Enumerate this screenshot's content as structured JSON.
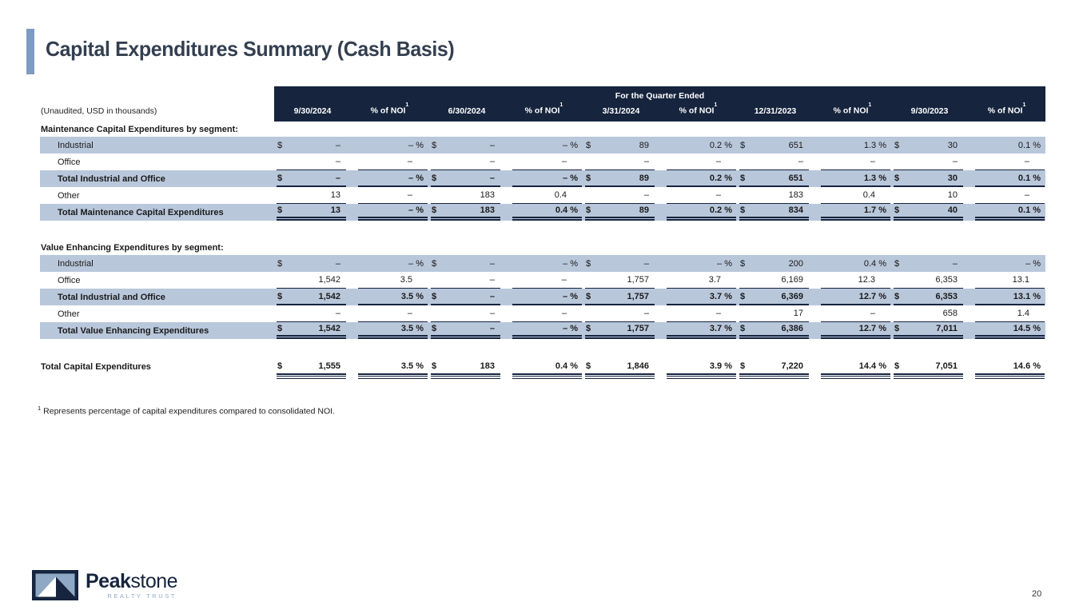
{
  "slide": {
    "title": "Capital Expenditures Summary (Cash Basis)",
    "page_number": "20",
    "footnote_marker": "1",
    "footnote_text": "Represents percentage of capital expenditures compared to consolidated NOI."
  },
  "logo": {
    "brand_bold": "Peak",
    "brand_light": "stone",
    "tagline": "REALTY TRUST"
  },
  "colors": {
    "navy": "#16243E",
    "stripe": "#B9C7DB",
    "accent": "#7E9CC2",
    "title": "#333F50",
    "steel": "#8FA9C4"
  },
  "table": {
    "spanner": "For the Quarter Ended",
    "unaudited_label": "(Unaudited, USD in thousands)",
    "currency": "$",
    "pct_label": "% of NOI",
    "pct_sup": "1",
    "quarters": [
      "9/30/2024",
      "6/30/2024",
      "3/31/2024",
      "12/31/2023",
      "9/30/2023"
    ],
    "sections": [
      {
        "heading": "Maintenance Capital Expenditures by segment:",
        "rows": [
          {
            "label": "Industrial",
            "stripe": true,
            "bold": false,
            "dollar": true,
            "pct_sign": true,
            "indent": true,
            "ul": "none",
            "cells": [
              [
                "–",
                "– %"
              ],
              [
                "–",
                "– %"
              ],
              [
                "89",
                "0.2 %"
              ],
              [
                "651",
                "1.3 %"
              ],
              [
                "30",
                "0.1 %"
              ]
            ]
          },
          {
            "label": "Office",
            "stripe": false,
            "bold": false,
            "dollar": false,
            "pct_sign": false,
            "indent": true,
            "ul": "single",
            "cells": [
              [
                "–",
                "–"
              ],
              [
                "–",
                "–"
              ],
              [
                "–",
                "–"
              ],
              [
                "–",
                "–"
              ],
              [
                "–",
                "–"
              ]
            ]
          },
          {
            "label": "Total Industrial and Office",
            "stripe": true,
            "bold": true,
            "dollar": true,
            "pct_sign": true,
            "indent": true,
            "ul": "strong",
            "cells": [
              [
                "–",
                "– %"
              ],
              [
                "–",
                "– %"
              ],
              [
                "89",
                "0.2 %"
              ],
              [
                "651",
                "1.3 %"
              ],
              [
                "30",
                "0.1 %"
              ]
            ]
          },
          {
            "label": "Other",
            "stripe": false,
            "bold": false,
            "dollar": false,
            "pct_sign": false,
            "indent": true,
            "ul": "single",
            "cells": [
              [
                "13",
                "–"
              ],
              [
                "183",
                "0.4"
              ],
              [
                "–",
                "–"
              ],
              [
                "183",
                "0.4"
              ],
              [
                "10",
                "–"
              ]
            ]
          },
          {
            "label": "Total Maintenance Capital Expenditures",
            "stripe": true,
            "bold": true,
            "dollar": true,
            "pct_sign": true,
            "indent": true,
            "ul": "double",
            "cells": [
              [
                "13",
                "– %"
              ],
              [
                "183",
                "0.4 %"
              ],
              [
                "89",
                "0.2 %"
              ],
              [
                "834",
                "1.7 %"
              ],
              [
                "40",
                "0.1 %"
              ]
            ]
          }
        ]
      },
      {
        "heading": "Value Enhancing Expenditures by segment:",
        "rows": [
          {
            "label": "Industrial",
            "stripe": true,
            "bold": false,
            "dollar": true,
            "pct_sign": true,
            "indent": true,
            "ul": "none",
            "cells": [
              [
                "–",
                "– %"
              ],
              [
                "–",
                "– %"
              ],
              [
                "–",
                "– %"
              ],
              [
                "200",
                "0.4 %"
              ],
              [
                "–",
                "– %"
              ]
            ]
          },
          {
            "label": "Office",
            "stripe": false,
            "bold": false,
            "dollar": false,
            "pct_sign": false,
            "indent": true,
            "ul": "single",
            "cells": [
              [
                "1,542",
                "3.5"
              ],
              [
                "–",
                "–"
              ],
              [
                "1,757",
                "3.7"
              ],
              [
                "6,169",
                "12.3"
              ],
              [
                "6,353",
                "13.1"
              ]
            ]
          },
          {
            "label": "Total Industrial and Office",
            "stripe": true,
            "bold": true,
            "dollar": true,
            "pct_sign": true,
            "indent": true,
            "ul": "strong",
            "cells": [
              [
                "1,542",
                "3.5 %"
              ],
              [
                "–",
                "– %"
              ],
              [
                "1,757",
                "3.7 %"
              ],
              [
                "6,369",
                "12.7 %"
              ],
              [
                "6,353",
                "13.1 %"
              ]
            ]
          },
          {
            "label": "Other",
            "stripe": false,
            "bold": false,
            "dollar": false,
            "pct_sign": false,
            "indent": true,
            "ul": "single",
            "cells": [
              [
                "–",
                "–"
              ],
              [
                "–",
                "–"
              ],
              [
                "–",
                "–"
              ],
              [
                "17",
                "–"
              ],
              [
                "658",
                "1.4"
              ]
            ]
          },
          {
            "label": "Total Value Enhancing Expenditures",
            "stripe": true,
            "bold": true,
            "dollar": true,
            "pct_sign": true,
            "indent": true,
            "ul": "double",
            "cells": [
              [
                "1,542",
                "3.5 %"
              ],
              [
                "–",
                "– %"
              ],
              [
                "1,757",
                "3.7 %"
              ],
              [
                "6,386",
                "12.7 %"
              ],
              [
                "7,011",
                "14.5 %"
              ]
            ]
          }
        ]
      }
    ],
    "grand_total": {
      "label": "Total Capital Expenditures",
      "stripe": false,
      "bold": true,
      "dollar": true,
      "pct_sign": true,
      "indent": false,
      "ul": "grand",
      "cells": [
        [
          "1,555",
          "3.5 %"
        ],
        [
          "183",
          "0.4 %"
        ],
        [
          "1,846",
          "3.9 %"
        ],
        [
          "7,220",
          "14.4 %"
        ],
        [
          "7,051",
          "14.6 %"
        ]
      ]
    }
  }
}
